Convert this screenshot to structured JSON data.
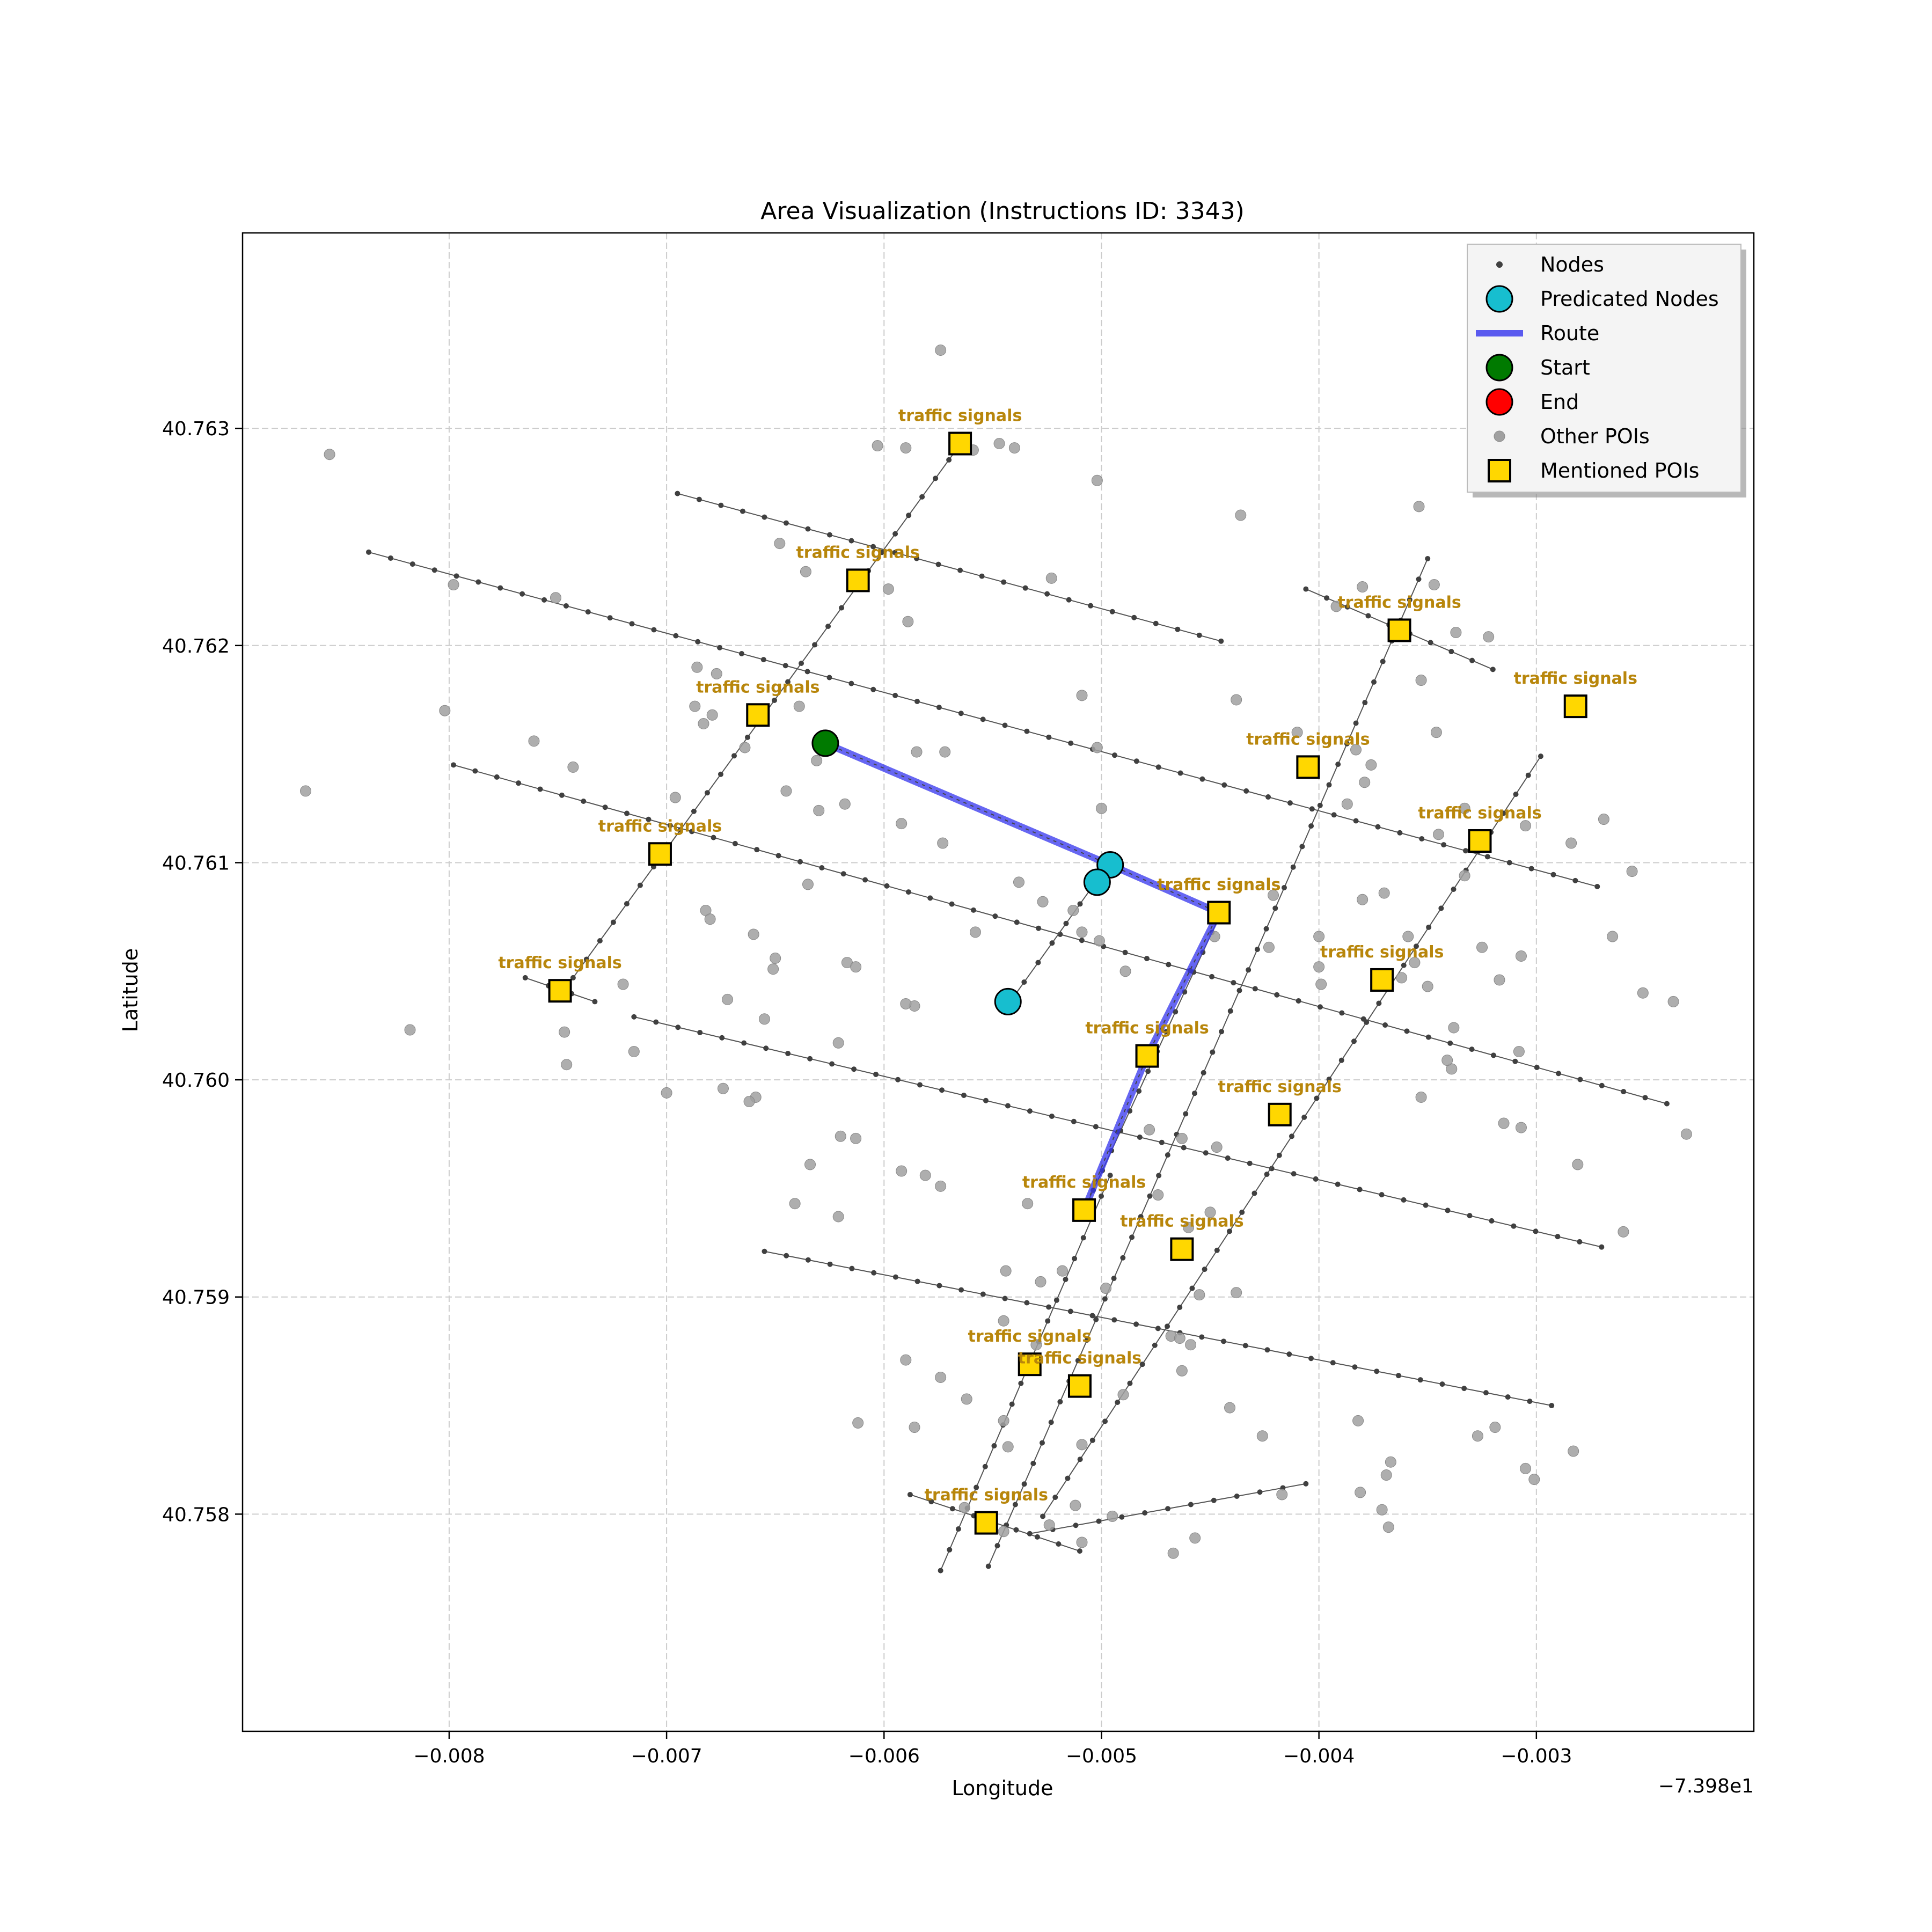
{
  "chart_data": {
    "type": "scatter",
    "title": "Area Visualization (Instructions ID: 3343)",
    "xlabel": "Longitude",
    "ylabel": "Latitude",
    "x_offset_label": "−7.398e1",
    "xlim": [
      -0.00895,
      -0.002
    ],
    "ylim": [
      40.757,
      40.7639
    ],
    "x_ticks": [
      -0.008,
      -0.007,
      -0.006,
      -0.005,
      -0.004,
      -0.003
    ],
    "x_tick_labels": [
      "−0.008",
      "−0.007",
      "−0.006",
      "−0.005",
      "−0.004",
      "−0.003"
    ],
    "y_ticks": [
      40.758,
      40.759,
      40.76,
      40.761,
      40.762,
      40.763
    ],
    "y_tick_labels": [
      "40.758",
      "40.759",
      "40.760",
      "40.761",
      "40.762",
      "40.763"
    ],
    "grid": true,
    "legend_position": "top-right",
    "legend": [
      {
        "label": "Nodes",
        "marker": "small-dot",
        "color": "#404040"
      },
      {
        "label": "Predicated Nodes",
        "marker": "circle",
        "color": "#17becf"
      },
      {
        "label": "Route",
        "marker": "line",
        "color": "#3333ee"
      },
      {
        "label": "Start",
        "marker": "circle",
        "color": "#007a00"
      },
      {
        "label": "End",
        "marker": "circle",
        "color": "#ff0000"
      },
      {
        "label": "Other POIs",
        "marker": "dot",
        "color": "#a0a0a0"
      },
      {
        "label": "Mentioned POIs",
        "marker": "square",
        "color": "#ffd700"
      }
    ],
    "colors": {
      "nodes": "#404040",
      "predicated": "#17becf",
      "route": "#3333ee",
      "start": "#007a00",
      "end": "#ff0000",
      "other_poi": "#a0a0a0",
      "mentioned_poi": "#ffd700",
      "poi_label": "#b8860b",
      "grid": "#cccccc"
    },
    "streets": [
      {
        "from": [
          -0.00837,
          40.76243
        ],
        "to": [
          -0.00272,
          40.76089
        ]
      },
      {
        "from": [
          -0.00695,
          40.7627
        ],
        "to": [
          -0.00445,
          40.76202
        ]
      },
      {
        "from": [
          -0.00798,
          40.76145
        ],
        "to": [
          -0.0024,
          40.75989
        ]
      },
      {
        "from": [
          -0.00715,
          40.76029
        ],
        "to": [
          -0.0027,
          40.75923
        ]
      },
      {
        "from": [
          -0.00655,
          40.75921
        ],
        "to": [
          -0.00293,
          40.7585
        ]
      },
      {
        "from": [
          -0.00588,
          40.75809
        ],
        "to": [
          -0.0051,
          40.75783
        ]
      },
      {
        "from": [
          -0.00406,
          40.76226
        ],
        "to": [
          -0.0032,
          40.76189
        ]
      },
      {
        "from": [
          -0.00765,
          40.76047
        ],
        "to": [
          -0.00733,
          40.76036
        ]
      },
      {
        "from": [
          -0.00533,
          40.75791
        ],
        "to": [
          -0.00406,
          40.75814
        ]
      },
      {
        "from": [
          -0.00743,
          40.76047
        ],
        "to": [
          -0.00564,
          40.76294
        ]
      },
      {
        "from": [
          -0.00574,
          40.75774
        ],
        "to": [
          -0.00496,
          40.75956
        ]
      },
      {
        "from": [
          -0.00552,
          40.75776
        ],
        "to": [
          -0.0035,
          40.7624
        ]
      },
      {
        "from": [
          -0.00508,
          40.7594
        ],
        "to": [
          -0.00445,
          40.76077
        ]
      },
      {
        "from": [
          -0.00542,
          40.76036
        ],
        "to": [
          -0.00497,
          40.76099
        ]
      },
      {
        "from": [
          -0.00527,
          40.75799
        ],
        "to": [
          -0.00298,
          40.76149
        ]
      }
    ],
    "route": [
      [
        -0.00627,
        40.76155
      ],
      [
        -0.00496,
        40.76099
      ],
      [
        -0.00446,
        40.76077
      ],
      [
        -0.00479,
        40.76011
      ],
      [
        -0.00508,
        40.7594
      ]
    ],
    "start": [
      -0.00627,
      40.76155
    ],
    "predicated_nodes": [
      [
        -0.00496,
        40.76099
      ],
      [
        -0.00502,
        40.76091
      ],
      [
        -0.00543,
        40.76036
      ]
    ],
    "mentioned_pois": [
      {
        "x": -0.00565,
        "y": 40.76293,
        "label": "traffic signals"
      },
      {
        "x": -0.00612,
        "y": 40.7623,
        "label": "traffic signals"
      },
      {
        "x": -0.00658,
        "y": 40.76168,
        "label": "traffic signals"
      },
      {
        "x": -0.00703,
        "y": 40.76104,
        "label": "traffic signals"
      },
      {
        "x": -0.00749,
        "y": 40.76041,
        "label": "traffic signals"
      },
      {
        "x": -0.00363,
        "y": 40.76207,
        "label": "traffic signals"
      },
      {
        "x": -0.00282,
        "y": 40.76172,
        "label": "traffic signals"
      },
      {
        "x": -0.00405,
        "y": 40.76144,
        "label": "traffic signals"
      },
      {
        "x": -0.00326,
        "y": 40.7611,
        "label": "traffic signals"
      },
      {
        "x": -0.00446,
        "y": 40.76077,
        "label": "traffic signals"
      },
      {
        "x": -0.00371,
        "y": 40.76046,
        "label": "traffic signals"
      },
      {
        "x": -0.00479,
        "y": 40.76011,
        "label": "traffic signals"
      },
      {
        "x": -0.00418,
        "y": 40.75984,
        "label": "traffic signals"
      },
      {
        "x": -0.00508,
        "y": 40.7594,
        "label": "traffic signals"
      },
      {
        "x": -0.00463,
        "y": 40.75922,
        "label": "traffic signals"
      },
      {
        "x": -0.00533,
        "y": 40.75869,
        "label": "traffic signals"
      },
      {
        "x": -0.0051,
        "y": 40.75859,
        "label": "traffic signals"
      },
      {
        "x": -0.00553,
        "y": 40.75796,
        "label": "traffic signals"
      }
    ],
    "other_pois": [
      [
        -0.00574,
        40.76336
      ],
      [
        -0.00502,
        40.76276
      ],
      [
        -0.00547,
        40.76293
      ],
      [
        -0.00559,
        40.7629
      ],
      [
        -0.0059,
        40.76291
      ],
      [
        -0.00603,
        40.76292
      ],
      [
        -0.0054,
        40.76291
      ],
      [
        -0.00436,
        40.7626
      ],
      [
        -0.00354,
        40.76264
      ],
      [
        -0.00523,
        40.76231
      ],
      [
        -0.00636,
        40.76234
      ],
      [
        -0.00589,
        40.76211
      ],
      [
        -0.00598,
        40.76226
      ],
      [
        -0.00648,
        40.76247
      ],
      [
        -0.00347,
        40.76228
      ],
      [
        -0.0038,
        40.76227
      ],
      [
        -0.00337,
        40.76206
      ],
      [
        -0.00322,
        40.76204
      ],
      [
        -0.00392,
        40.76218
      ],
      [
        -0.00866,
        40.76133
      ],
      [
        -0.00802,
        40.7617
      ],
      [
        -0.00855,
        40.76288
      ],
      [
        -0.00798,
        40.76228
      ],
      [
        -0.00751,
        40.76222
      ],
      [
        -0.00743,
        40.76144
      ],
      [
        -0.00761,
        40.76156
      ],
      [
        -0.00686,
        40.7619
      ],
      [
        -0.00677,
        40.76187
      ],
      [
        -0.00687,
        40.76172
      ],
      [
        -0.00679,
        40.76168
      ],
      [
        -0.00683,
        40.76164
      ],
      [
        -0.00639,
        40.76172
      ],
      [
        -0.00585,
        40.76151
      ],
      [
        -0.00509,
        40.76177
      ],
      [
        -0.00438,
        40.76175
      ],
      [
        -0.0041,
        40.7616
      ],
      [
        -0.00383,
        40.76152
      ],
      [
        -0.00376,
        40.76145
      ],
      [
        -0.00353,
        40.76184
      ],
      [
        -0.00346,
        40.7616
      ],
      [
        -0.00379,
        40.76137
      ],
      [
        -0.00387,
        40.76127
      ],
      [
        -0.00631,
        40.76147
      ],
      [
        -0.00645,
        40.76133
      ],
      [
        -0.00664,
        40.76153
      ],
      [
        -0.00618,
        40.76127
      ],
      [
        -0.00696,
        40.7613
      ],
      [
        -0.0063,
        40.76124
      ],
      [
        -0.00572,
        40.76151
      ],
      [
        -0.00502,
        40.76153
      ],
      [
        -0.005,
        40.76125
      ],
      [
        -0.00592,
        40.76118
      ],
      [
        -0.00573,
        40.76109
      ],
      [
        -0.00538,
        40.76091
      ],
      [
        -0.00527,
        40.76082
      ],
      [
        -0.00513,
        40.76078
      ],
      [
        -0.00509,
        40.76068
      ],
      [
        -0.00448,
        40.76066
      ],
      [
        -0.00423,
        40.76061
      ],
      [
        -0.004,
        40.76052
      ],
      [
        -0.004,
        40.76066
      ],
      [
        -0.00421,
        40.76085
      ],
      [
        -0.00333,
        40.76094
      ],
      [
        -0.00345,
        40.76113
      ],
      [
        -0.00333,
        40.76125
      ],
      [
        -0.00284,
        40.76109
      ],
      [
        -0.00269,
        40.7612
      ],
      [
        -0.00305,
        40.76117
      ],
      [
        -0.00256,
        40.76096
      ],
      [
        -0.00635,
        40.7609
      ],
      [
        -0.00682,
        40.76078
      ],
      [
        -0.0068,
        40.76074
      ],
      [
        -0.0066,
        40.76067
      ],
      [
        -0.0065,
        40.76056
      ],
      [
        -0.00651,
        40.76051
      ],
      [
        -0.00617,
        40.76054
      ],
      [
        -0.00613,
        40.76052
      ],
      [
        -0.00558,
        40.76068
      ],
      [
        -0.00501,
        40.76064
      ],
      [
        -0.00489,
        40.7605
      ],
      [
        -0.00399,
        40.76044
      ],
      [
        -0.0038,
        40.76083
      ],
      [
        -0.0037,
        40.76086
      ],
      [
        -0.00359,
        40.76066
      ],
      [
        -0.00356,
        40.76054
      ],
      [
        -0.00362,
        40.76047
      ],
      [
        -0.00325,
        40.76061
      ],
      [
        -0.0035,
        40.76043
      ],
      [
        -0.00338,
        40.76024
      ],
      [
        -0.00307,
        40.76057
      ],
      [
        -0.00317,
        40.76046
      ],
      [
        -0.00265,
        40.76066
      ],
      [
        -0.00251,
        40.7604
      ],
      [
        -0.00237,
        40.76036
      ],
      [
        -0.0072,
        40.76044
      ],
      [
        -0.00672,
        40.76037
      ],
      [
        -0.00655,
        40.76028
      ],
      [
        -0.00586,
        40.76034
      ],
      [
        -0.0059,
        40.76035
      ],
      [
        -0.00621,
        40.76017
      ],
      [
        -0.00747,
        40.76022
      ],
      [
        -0.00746,
        40.76007
      ],
      [
        -0.00818,
        40.76023
      ],
      [
        -0.00715,
        40.76013
      ],
      [
        -0.007,
        40.75994
      ],
      [
        -0.00674,
        40.75996
      ],
      [
        -0.00659,
        40.75992
      ],
      [
        -0.00662,
        40.7599
      ],
      [
        -0.0062,
        40.75974
      ],
      [
        -0.00613,
        40.75973
      ],
      [
        -0.00634,
        40.75961
      ],
      [
        -0.00592,
        40.75958
      ],
      [
        -0.00581,
        40.75956
      ],
      [
        -0.00478,
        40.75977
      ],
      [
        -0.00463,
        40.75973
      ],
      [
        -0.00447,
        40.75969
      ],
      [
        -0.00339,
        40.76005
      ],
      [
        -0.00341,
        40.76009
      ],
      [
        -0.00308,
        40.76013
      ],
      [
        -0.00353,
        40.75992
      ],
      [
        -0.00315,
        40.7598
      ],
      [
        -0.00307,
        40.75978
      ],
      [
        -0.00281,
        40.75961
      ],
      [
        -0.0026,
        40.7593
      ],
      [
        -0.00231,
        40.75975
      ],
      [
        -0.00621,
        40.75937
      ],
      [
        -0.00641,
        40.75943
      ],
      [
        -0.00574,
        40.75951
      ],
      [
        -0.00534,
        40.75943
      ],
      [
        -0.00474,
        40.75947
      ],
      [
        -0.0046,
        40.75932
      ],
      [
        -0.0045,
        40.75939
      ],
      [
        -0.00518,
        40.75912
      ],
      [
        -0.00544,
        40.75912
      ],
      [
        -0.00528,
        40.75907
      ],
      [
        -0.00498,
        40.75904
      ],
      [
        -0.00455,
        40.75901
      ],
      [
        -0.00438,
        40.75902
      ],
      [
        -0.0053,
        40.75878
      ],
      [
        -0.00545,
        40.75889
      ],
      [
        -0.0059,
        40.75871
      ],
      [
        -0.00574,
        40.75863
      ],
      [
        -0.00468,
        40.75882
      ],
      [
        -0.00464,
        40.75881
      ],
      [
        -0.00459,
        40.75878
      ],
      [
        -0.00463,
        40.75866
      ],
      [
        -0.0049,
        40.75855
      ],
      [
        -0.00562,
        40.75853
      ],
      [
        -0.00612,
        40.75842
      ],
      [
        -0.00586,
        40.7584
      ],
      [
        -0.00545,
        40.75843
      ],
      [
        -0.00543,
        40.75831
      ],
      [
        -0.00509,
        40.75832
      ],
      [
        -0.00441,
        40.75849
      ],
      [
        -0.00426,
        40.75836
      ],
      [
        -0.00382,
        40.75843
      ],
      [
        -0.00367,
        40.75824
      ],
      [
        -0.00369,
        40.75818
      ],
      [
        -0.00327,
        40.75836
      ],
      [
        -0.00319,
        40.7584
      ],
      [
        -0.00305,
        40.75821
      ],
      [
        -0.00301,
        40.75816
      ],
      [
        -0.00283,
        40.75829
      ],
      [
        -0.00524,
        40.75795
      ],
      [
        -0.00545,
        40.75792
      ],
      [
        -0.00563,
        40.75803
      ],
      [
        -0.00512,
        40.75804
      ],
      [
        -0.00495,
        40.75799
      ],
      [
        -0.00457,
        40.75789
      ],
      [
        -0.00467,
        40.75782
      ],
      [
        -0.00509,
        40.75787
      ],
      [
        -0.00417,
        40.75809
      ],
      [
        -0.00381,
        40.7581
      ],
      [
        -0.00371,
        40.75802
      ],
      [
        -0.00368,
        40.75794
      ]
    ]
  }
}
